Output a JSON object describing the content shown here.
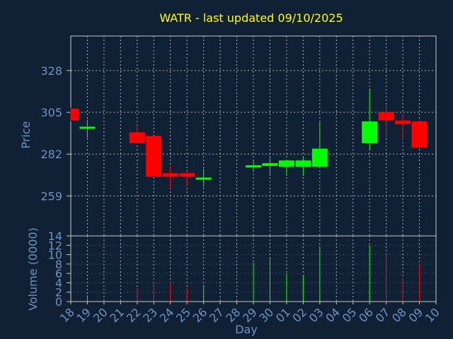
{
  "chart_data": {
    "type": "candlestick",
    "title": "WATR - last updated 09/10/2025",
    "xlabel": "Day",
    "ylabel": "Price",
    "volume_label": "Volume (0000)",
    "ylim": [
      237,
      347
    ],
    "yticks": [
      259,
      282,
      305,
      328
    ],
    "volume_ylim": [
      0,
      14
    ],
    "volume_yticks": [
      0,
      2,
      4,
      6,
      8,
      10,
      12,
      14
    ],
    "x_tick_labels": [
      "18",
      "19",
      "20",
      "21",
      "22",
      "23",
      "24",
      "25",
      "26",
      "27",
      "28",
      "29",
      "30",
      "01",
      "02",
      "03",
      "04",
      "05",
      "06",
      "07",
      "08",
      "09",
      "10"
    ],
    "candles": [
      {
        "day": "18",
        "open": 307.0,
        "close": 300.5,
        "high": 307.5,
        "low": 300.0,
        "volume": 0.0
      },
      {
        "day": "19",
        "open": 296.0,
        "close": 297.0,
        "high": 301.0,
        "low": 291.0,
        "volume": 1.3
      },
      {
        "day": "22",
        "open": 294.0,
        "close": 288.0,
        "high": 298.0,
        "low": 288.0,
        "volume": 3.0
      },
      {
        "day": "23",
        "open": 292.0,
        "close": 269.5,
        "high": 292.0,
        "low": 269.5,
        "volume": 4.2
      },
      {
        "day": "24",
        "open": 271.5,
        "close": 269.5,
        "high": 275.5,
        "low": 263.0,
        "volume": 3.8
      },
      {
        "day": "25",
        "open": 271.5,
        "close": 269.5,
        "high": 272.0,
        "low": 264.5,
        "volume": 3.0
      },
      {
        "day": "26",
        "open": 268.0,
        "close": 269.0,
        "high": 274.0,
        "low": 264.0,
        "volume": 3.5
      },
      {
        "day": "29",
        "open": 275.0,
        "close": 275.5,
        "high": 278.0,
        "low": 273.0,
        "volume": 8.3
      },
      {
        "day": "30",
        "open": 275.5,
        "close": 277.0,
        "high": 280.0,
        "low": 270.0,
        "volume": 9.3
      },
      {
        "day": "01",
        "open": 275.0,
        "close": 278.5,
        "high": 279.0,
        "low": 270.0,
        "volume": 6.0
      },
      {
        "day": "02",
        "open": 275.0,
        "close": 278.5,
        "high": 280.0,
        "low": 270.0,
        "volume": 5.7
      },
      {
        "day": "03",
        "open": 275.0,
        "close": 285.0,
        "high": 300.0,
        "low": 275.0,
        "volume": 11.7
      },
      {
        "day": "06",
        "open": 288.0,
        "close": 300.0,
        "high": 318.0,
        "low": 284.0,
        "volume": 12.0
      },
      {
        "day": "07",
        "open": 305.0,
        "close": 300.5,
        "high": 309.0,
        "low": 291.0,
        "volume": 10.0
      },
      {
        "day": "08",
        "open": 300.5,
        "close": 298.5,
        "high": 304.0,
        "low": 290.0,
        "volume": 5.0
      },
      {
        "day": "09",
        "open": 300.0,
        "close": 285.5,
        "high": 300.0,
        "low": 285.5,
        "volume": 8.0
      }
    ],
    "colors": {
      "up": "#00ff00",
      "down": "#ff0000",
      "background": "#102035",
      "text": "#6f93bf",
      "title": "#ffff00",
      "frame": "#c8c8c8"
    },
    "grid": true
  }
}
